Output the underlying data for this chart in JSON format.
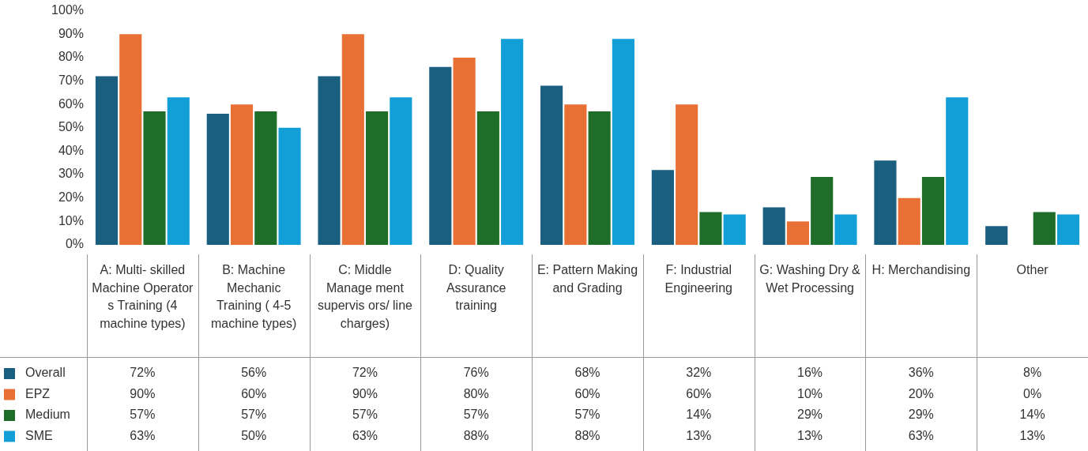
{
  "chart_data": {
    "type": "bar",
    "categories": [
      "A: Multi- skilled Machine Operator s Training (4 machine types)",
      "B: Machine Mechanic Training ( 4-5 machine types)",
      "C: Middle Manage ment supervis ors/ line charges)",
      "D: Quality Assurance training",
      "E: Pattern Making and Grading",
      "F: Industrial Engineering",
      "G: Washing Dry & Wet Processing",
      "H: Merchandising",
      "Other"
    ],
    "series": [
      {
        "name": "Overall",
        "color": "#1a5e80",
        "values": [
          72,
          56,
          72,
          76,
          68,
          32,
          16,
          36,
          8
        ],
        "value_labels": [
          "72%",
          "56%",
          "72%",
          "76%",
          "68%",
          "32%",
          "16%",
          "36%",
          "8%"
        ]
      },
      {
        "name": "EPZ",
        "color": "#e87035",
        "values": [
          90,
          60,
          90,
          80,
          60,
          60,
          10,
          20,
          0
        ],
        "value_labels": [
          "90%",
          "60%",
          "90%",
          "80%",
          "60%",
          "60%",
          "10%",
          "20%",
          "0%"
        ]
      },
      {
        "name": "Medium",
        "color": "#1e6e2a",
        "values": [
          57,
          57,
          57,
          57,
          57,
          14,
          29,
          29,
          14
        ],
        "value_labels": [
          "57%",
          "57%",
          "57%",
          "57%",
          "57%",
          "14%",
          "29%",
          "29%",
          "14%"
        ]
      },
      {
        "name": "SME",
        "color": "#129fd8",
        "values": [
          63,
          50,
          63,
          88,
          88,
          13,
          13,
          63,
          13
        ],
        "value_labels": [
          "63%",
          "50%",
          "63%",
          "88%",
          "88%",
          "13%",
          "13%",
          "63%",
          "13%"
        ]
      }
    ],
    "ylim": [
      0,
      100
    ],
    "yticks": [
      {
        "value": 0,
        "label": "0%"
      },
      {
        "value": 10,
        "label": "10%"
      },
      {
        "value": 20,
        "label": "20%"
      },
      {
        "value": 30,
        "label": "30%"
      },
      {
        "value": 40,
        "label": "40%"
      },
      {
        "value": 50,
        "label": "50%"
      },
      {
        "value": 60,
        "label": "60%"
      },
      {
        "value": 70,
        "label": "70%"
      },
      {
        "value": 80,
        "label": "80%"
      },
      {
        "value": 90,
        "label": "90%"
      },
      {
        "value": 100,
        "label": "100%"
      }
    ],
    "grid": false,
    "legend": "bottom left"
  }
}
